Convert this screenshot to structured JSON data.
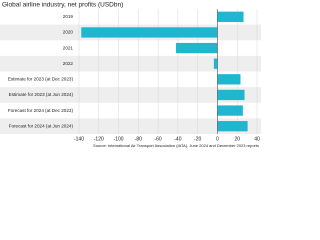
{
  "chart_data": {
    "type": "bar",
    "orientation": "horizontal",
    "title": "Global airline industry, net profits (USDbn)",
    "categories": [
      "2019",
      "2020",
      "2021",
      "2022",
      "Estimate for 2023 (at Dec 2023)",
      "Estimate for 2023 (at Jun 2024)",
      "Forecast for 2024 (at Dec 2023)",
      "Forecast for 2024 (at Jun 2024)"
    ],
    "values": [
      26.4,
      -137.7,
      -42,
      -3.6,
      23.3,
      27.4,
      25.7,
      30.5
    ],
    "color": "#20b6d0",
    "xlim": [
      -140,
      40
    ],
    "xticks": [
      -140,
      -120,
      -100,
      -80,
      -60,
      -40,
      -20,
      0,
      20,
      40
    ],
    "grid": true,
    "source": "Source: International Air Transport Association (IATA), June 2024 and December 2023 reports"
  }
}
